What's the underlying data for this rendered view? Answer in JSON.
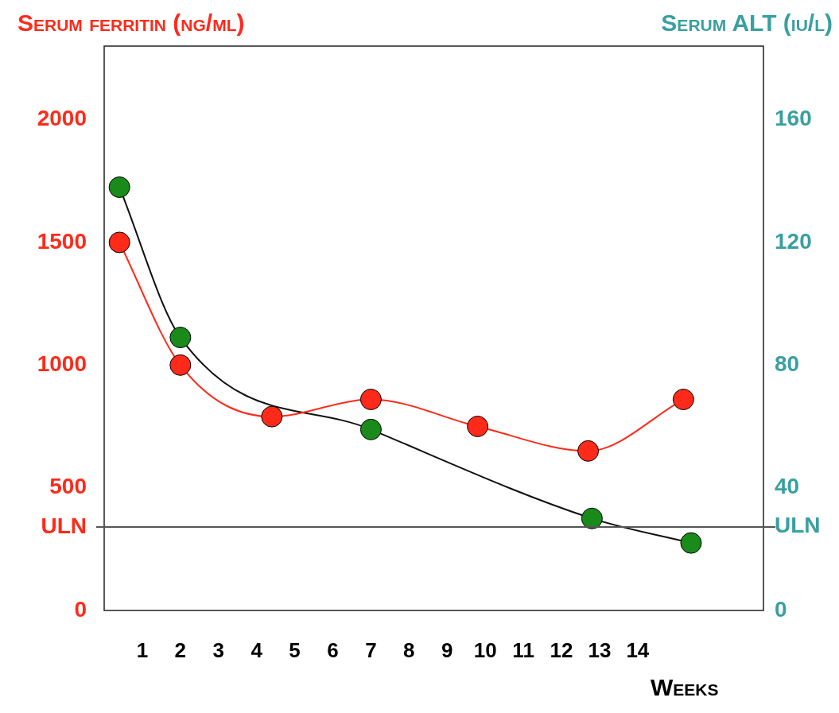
{
  "chart_data": {
    "type": "line",
    "ylabel": "Serum ferritin (ng/ml)",
    "y2label": "Serum ALT (iu/l)",
    "xlabel": "Weeks",
    "xlim": [
      0,
      17.3
    ],
    "xticks": [
      1,
      2,
      3,
      4,
      5,
      6,
      7,
      8,
      9,
      10,
      11,
      12,
      13,
      14
    ],
    "ylim": [
      0,
      2300
    ],
    "yticks": [
      0,
      500,
      1000,
      1500,
      2000,
      {
        "value": 340,
        "label": "ULN"
      }
    ],
    "y2lim": [
      0,
      184
    ],
    "y2ticks": [
      0,
      40,
      80,
      120,
      160,
      {
        "value": 27.4,
        "label": "ULN"
      }
    ],
    "ref_lines": [
      {
        "axis": "y",
        "value": 340,
        "color": "#555555"
      }
    ],
    "marker": "circle",
    "line_style": "solid",
    "grid": false,
    "legend": false,
    "series": [
      {
        "color": "#ff2a1a",
        "x": [
          0.4,
          2,
          4.4,
          7,
          9.8,
          12.7,
          15.2
        ],
        "values": [
          1500,
          1000,
          790,
          860,
          750,
          650,
          860
        ]
      },
      {
        "color": "#111111",
        "colors": [
          "#1a8a1a",
          "#1a8a1a",
          "#1a8a1a",
          "#1a8a1a",
          "#1a8a1a"
        ],
        "axis": "y2",
        "x": [
          0.4,
          2,
          7,
          12.8,
          15.4
        ],
        "values": [
          138,
          89,
          59,
          30,
          22
        ]
      }
    ]
  }
}
